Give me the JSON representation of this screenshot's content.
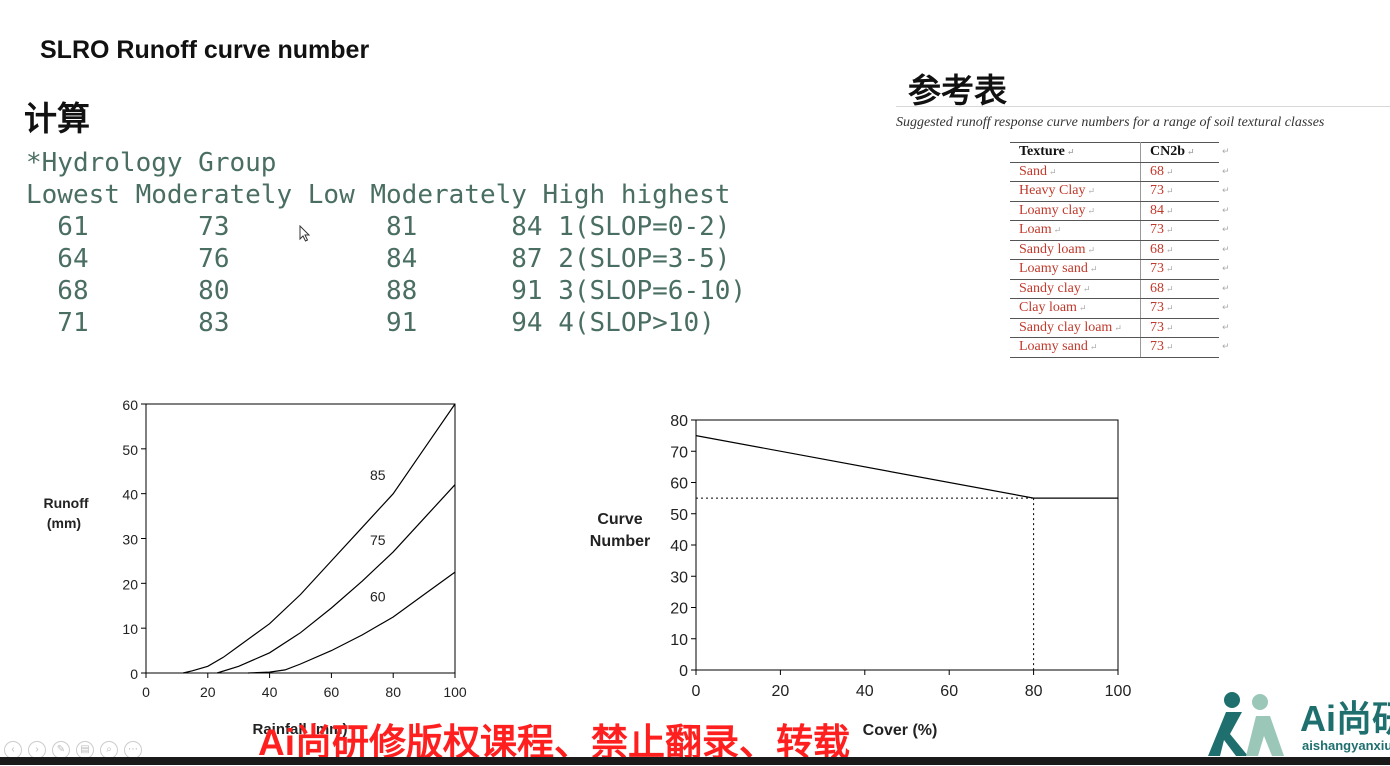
{
  "slide": {
    "title": "SLRO Runoff curve number",
    "calc_heading": "计算",
    "ref_heading": "参考表"
  },
  "calc": {
    "lines": [
      "*Hydrology Group",
      "Lowest Moderately Low Moderately High highest",
      "  61       73          81      84 1(SLOP=0-2)",
      "  64       76          84      87 2(SLOP=3-5)",
      "  68       80          88      91 3(SLOP=6-10)",
      "  71       83          91      94 4(SLOP>10)"
    ]
  },
  "reference": {
    "caption": "Suggested runoff response curve numbers for a range of soil textural classes",
    "headers": [
      "Texture",
      "CN2b"
    ],
    "rows": [
      [
        "Sand",
        "68"
      ],
      [
        "Heavy Clay",
        "73"
      ],
      [
        "Loamy clay",
        "84"
      ],
      [
        "Loam",
        "73"
      ],
      [
        "Sandy loam",
        "68"
      ],
      [
        "Loamy sand",
        "73"
      ],
      [
        "Sandy clay",
        "68"
      ],
      [
        "Clay loam",
        "73"
      ],
      [
        "Sandy clay loam",
        "73"
      ],
      [
        "Loamy sand",
        "73"
      ]
    ],
    "mark": "↵"
  },
  "chart_data": [
    {
      "type": "line",
      "ylabel": "Runoff\n(mm)",
      "xlabel": "Rainfall (mm)",
      "xlim": [
        0,
        100
      ],
      "ylim": [
        0,
        60
      ],
      "xticks": [
        0,
        20,
        40,
        60,
        80,
        100
      ],
      "yticks": [
        0,
        10,
        20,
        30,
        40,
        50,
        60
      ],
      "series": [
        {
          "name": "85",
          "x": [
            12,
            15,
            20,
            25,
            30,
            40,
            50,
            60,
            70,
            80,
            90,
            100
          ],
          "y": [
            0,
            0.5,
            1.5,
            3.5,
            6,
            11,
            17.5,
            25,
            32.5,
            40,
            50,
            60
          ]
        },
        {
          "name": "75",
          "x": [
            23,
            30,
            40,
            50,
            60,
            70,
            80,
            90,
            100
          ],
          "y": [
            0,
            1.5,
            4.5,
            9,
            14.5,
            20.5,
            27,
            34.5,
            42
          ]
        },
        {
          "name": "60",
          "x": [
            33,
            40,
            45,
            50,
            60,
            70,
            75,
            80,
            90,
            100
          ],
          "y": [
            0,
            0.2,
            0.7,
            2,
            5,
            8.5,
            10.5,
            12.5,
            17.5,
            22.5
          ]
        }
      ],
      "grid": false,
      "legend": "inline labels"
    },
    {
      "type": "line",
      "ylabel": "Curve\nNumber",
      "xlabel": "Cover (%)",
      "xlim": [
        0,
        100
      ],
      "ylim": [
        0,
        80
      ],
      "xticks": [
        0,
        20,
        40,
        60,
        80,
        100
      ],
      "yticks": [
        0,
        10,
        20,
        30,
        40,
        50,
        60,
        70,
        80
      ],
      "series": [
        {
          "x": [
            0,
            80,
            100
          ],
          "y": [
            75,
            55,
            55
          ]
        }
      ],
      "annotations": [
        {
          "x": 80,
          "y": 55,
          "style": "dotted guide lines to axes"
        }
      ],
      "grid": false
    }
  ],
  "watermark": {
    "text": "Ai尚研修版权课程、禁止翻录、转载"
  },
  "logo": {
    "text": "Ai尚研",
    "sub": "aishangyanxiu",
    "color": "#1f6f6f"
  },
  "toolbar": {
    "buttons": [
      "prev",
      "next",
      "pen",
      "slides",
      "zoom",
      "more"
    ]
  },
  "colors": {
    "code_text": "#4a6e63",
    "table_value": "#c0392b",
    "watermark": "#ff1f1f"
  }
}
